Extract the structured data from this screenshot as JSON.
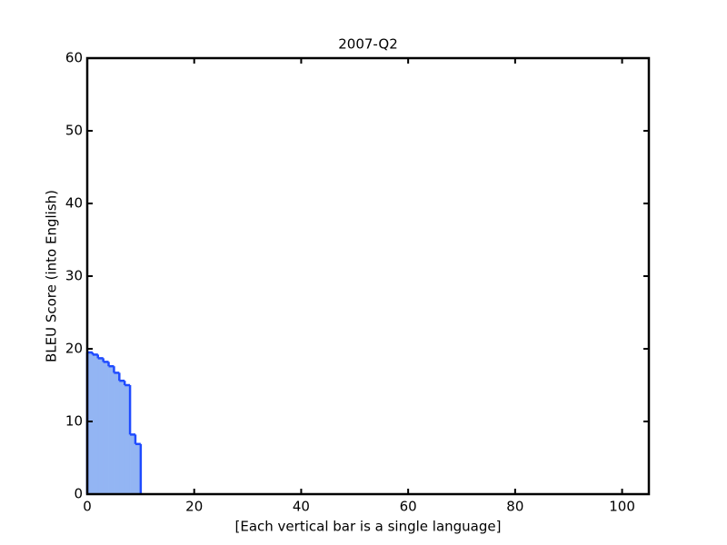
{
  "chart_data": {
    "type": "bar",
    "title": "2007-Q2",
    "x_label": "[Each vertical bar is a single language]",
    "y_label": "BLEU Score (into English)",
    "x": [
      0,
      1,
      2,
      3,
      4,
      5,
      6,
      7,
      8,
      9
    ],
    "values": [
      19.5,
      19.2,
      18.7,
      18.2,
      17.6,
      16.7,
      15.6,
      15.0,
      8.2,
      6.9
    ],
    "bar_width": 1,
    "color": "#93b5f3",
    "edge_color": "#1f4bff",
    "xlim": [
      0,
      105
    ],
    "xticks": [
      0,
      20,
      40,
      60,
      80,
      100
    ],
    "ylim": [
      0,
      60
    ],
    "yticks": [
      0,
      10,
      20,
      30,
      40,
      50,
      60
    ]
  }
}
